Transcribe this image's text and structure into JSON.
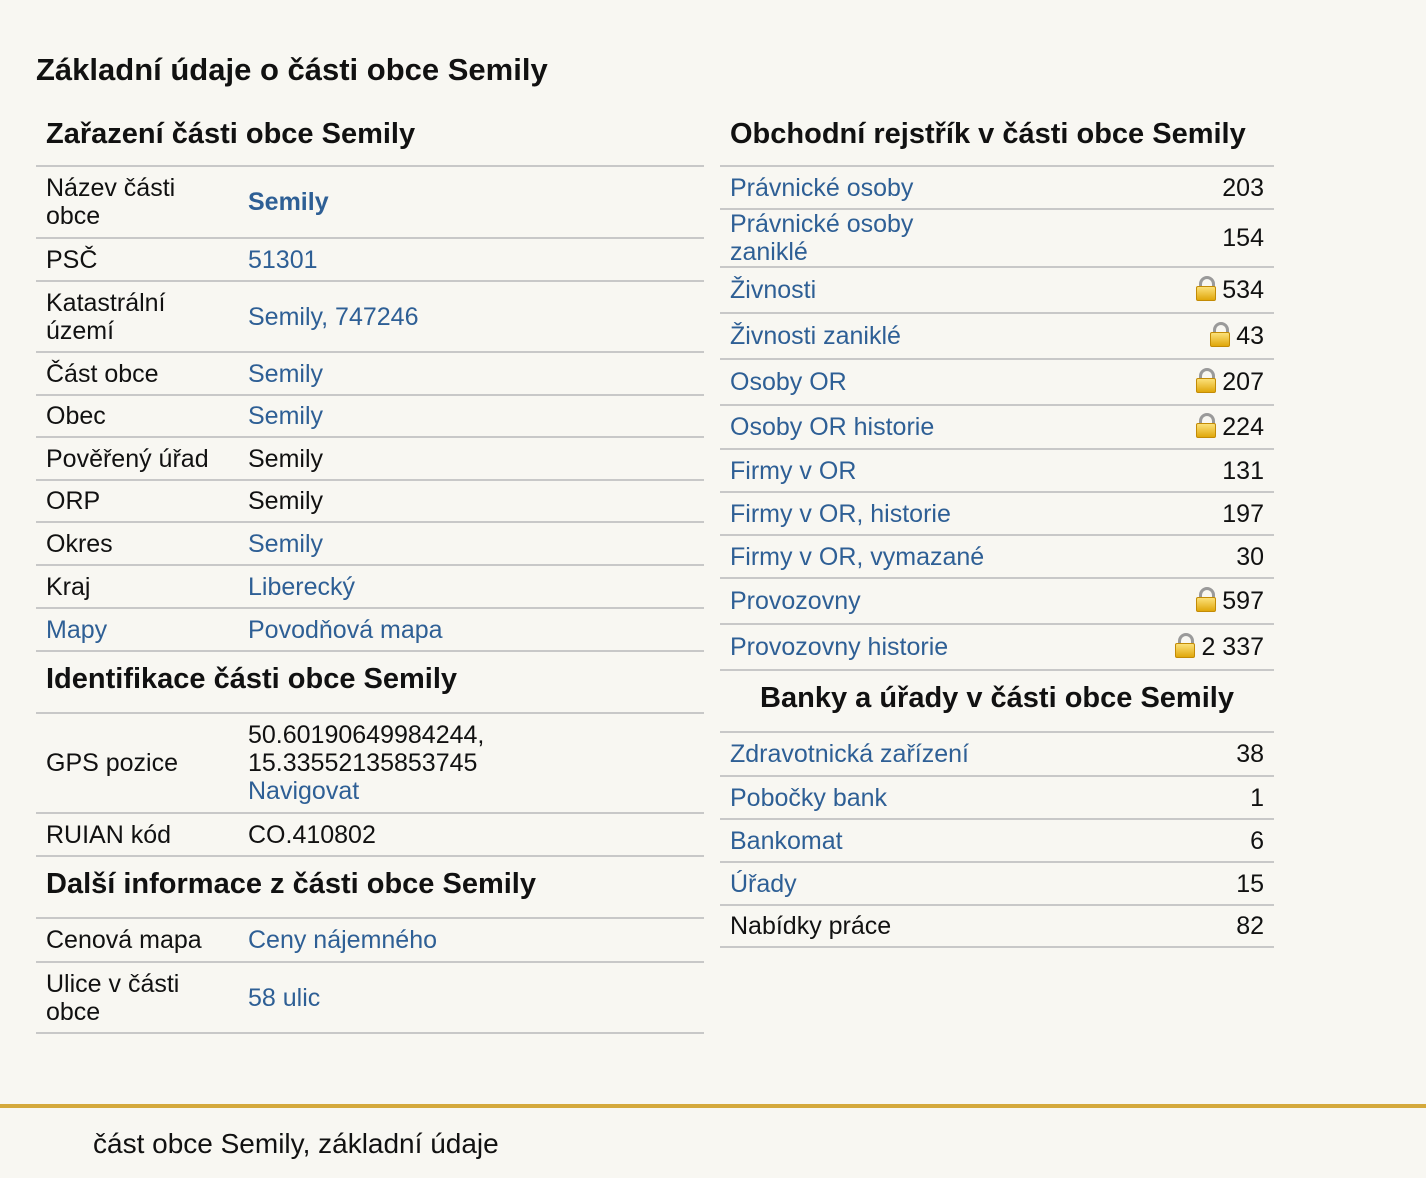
{
  "page_title": "Základní údaje o části obce Semily",
  "zarazeni": {
    "title": "Zařazení části obce Semily",
    "rows": [
      {
        "key": "Název části obce",
        "value": "Semily"
      },
      {
        "key": "PSČ",
        "value": "51301"
      },
      {
        "key": "Katastrální území",
        "value": "Semily, 747246"
      },
      {
        "key": "Část obce",
        "value": "Semily"
      },
      {
        "key": "Obec",
        "value": "Semily"
      },
      {
        "key": "Pověřený úřad",
        "value": "Semily"
      },
      {
        "key": "ORP",
        "value": "Semily"
      },
      {
        "key": "Okres",
        "value": "Semily"
      },
      {
        "key": "Kraj",
        "value": "Liberecký"
      },
      {
        "key": "Mapy",
        "value": "Povodňová mapa"
      }
    ]
  },
  "identifikace": {
    "title": "Identifikace části obce Semily",
    "gps_label": "GPS pozice",
    "gps_lat": "50.60190649984244,",
    "gps_lon": "15.33552135853745",
    "navigovat": "Navigovat",
    "ruian_label": "RUIAN kód",
    "ruian_value": "CO.410802"
  },
  "dalsi": {
    "title": "Další informace z části obce Semily",
    "rows": [
      {
        "key": "Cenová mapa",
        "value": "Ceny nájemného"
      },
      {
        "key": "Ulice v části obce",
        "value": "58 ulic"
      }
    ]
  },
  "rejstrik": {
    "title": "Obchodní rejstřík v části obce Semily",
    "rows": [
      {
        "label": "Právnické osoby",
        "value": "203"
      },
      {
        "label": "Právnické osoby zaniklé",
        "value": "154"
      },
      {
        "label": "Živnosti",
        "value": "534"
      },
      {
        "label": "Živnosti zaniklé",
        "value": "43"
      },
      {
        "label": "Osoby OR",
        "value": "207"
      },
      {
        "label": "Osoby OR historie",
        "value": "224"
      },
      {
        "label": "Firmy v OR",
        "value": "131"
      },
      {
        "label": "Firmy v OR, historie",
        "value": "197"
      },
      {
        "label": "Firmy v OR, vymazané",
        "value": "30"
      },
      {
        "label": "Provozovny",
        "value": "597"
      },
      {
        "label": "Provozovny historie",
        "value": "2 337"
      }
    ]
  },
  "banky": {
    "title": "Banky a úřady v části obce Semily",
    "rows": [
      {
        "label": "Zdravotnická zařízení",
        "value": "38"
      },
      {
        "label": "Pobočky bank",
        "value": "1"
      },
      {
        "label": "Bankomat",
        "value": "6"
      },
      {
        "label": "Úřady",
        "value": "15"
      },
      {
        "label": "Nabídky práce",
        "value": "82"
      }
    ]
  },
  "icons": {
    "lock": "lock-icon"
  },
  "colors": {
    "link": "#2e5f95",
    "footer_bar": "#d4a93c",
    "background": "#f8f7f2"
  },
  "footer": {
    "text": "část obce Semily, základní údaje"
  }
}
